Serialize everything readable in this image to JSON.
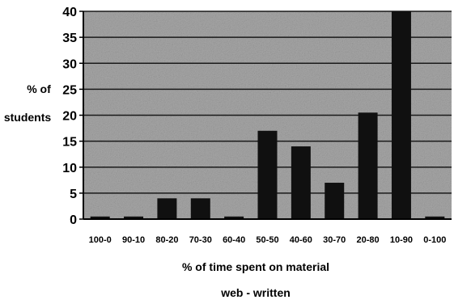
{
  "chart_data": {
    "type": "bar",
    "title": "",
    "ylabel_lines": [
      "% of",
      "students"
    ],
    "xlabel_lines": [
      "% of time spent on  material",
      "web - written"
    ],
    "categories": [
      "100-0",
      "90-10",
      "80-20",
      "70-30",
      "60-40",
      "50-50",
      "40-60",
      "30-70",
      "20-80",
      "10-90",
      "0-100"
    ],
    "values": [
      0.5,
      0.5,
      4,
      4,
      0.5,
      17,
      14,
      7,
      20.5,
      40,
      0.5
    ],
    "ylim": [
      0,
      40
    ],
    "yticks": [
      0,
      5,
      10,
      15,
      20,
      25,
      30,
      35,
      40
    ],
    "grid": true,
    "colors": {
      "plot_bg": "#a8a8a8",
      "bar": "#101010",
      "grid": "#1a1a1a",
      "axis": "#000000"
    }
  }
}
